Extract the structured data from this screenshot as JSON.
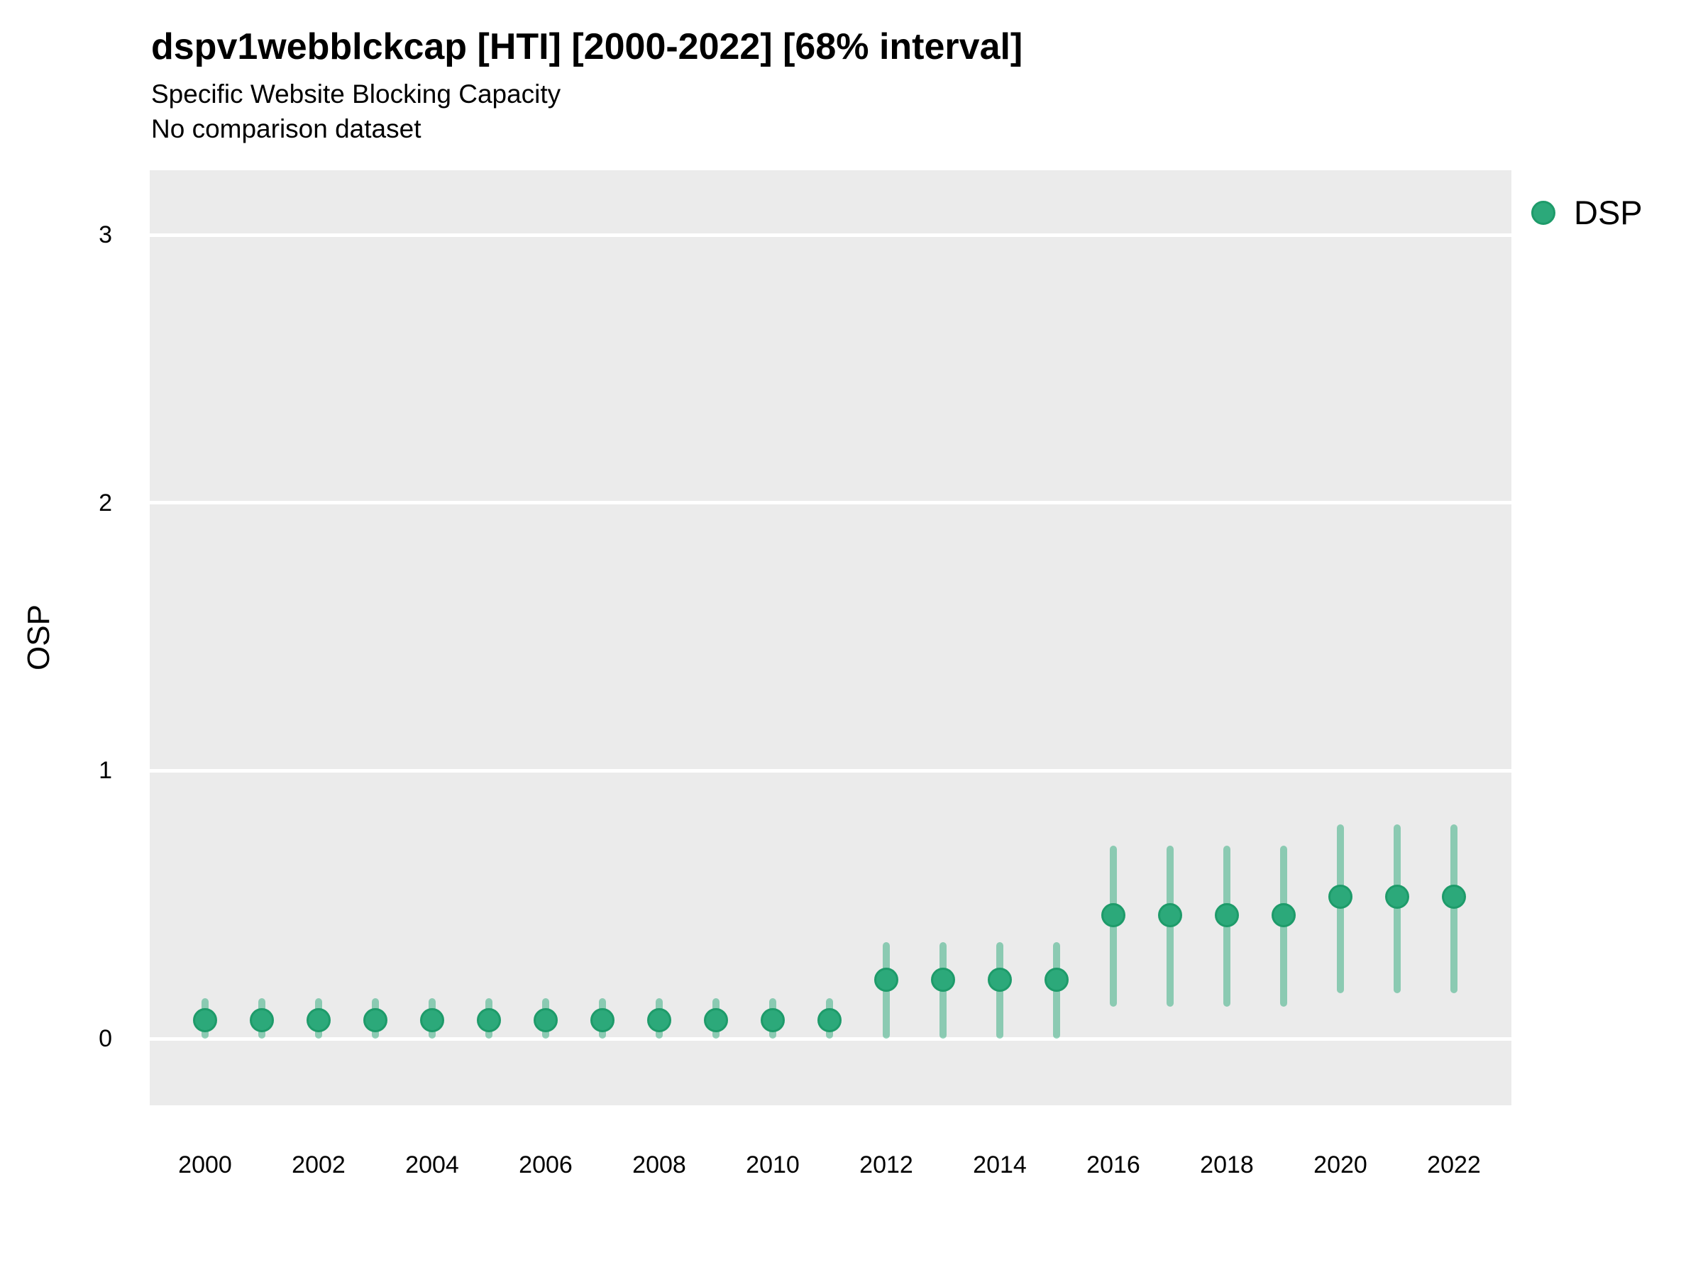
{
  "colors": {
    "point_fill": "#2ca97a",
    "point_stroke": "#1e9b6a",
    "interval_stroke": "rgba(44,169,122,0.5)",
    "panel_background": "#ebebeb",
    "gridline": "#ffffff",
    "text": "#000000"
  },
  "legend": {
    "position": "right-top",
    "marker": "circle-icon",
    "items": [
      {
        "label": "DSP"
      }
    ]
  },
  "chart_data": {
    "type": "scatter",
    "subtype": "pointrange",
    "title": "dspv1webblckcap [HTI] [2000-2022] [68% interval]",
    "subtitle": "Specific Website Blocking Capacity",
    "note": "No comparison dataset",
    "xlabel": "",
    "ylabel": "OSP",
    "x_ticks": [
      2000,
      2002,
      2004,
      2006,
      2008,
      2010,
      2012,
      2014,
      2016,
      2018,
      2020,
      2022
    ],
    "y_ticks": [
      0,
      1,
      2,
      3
    ],
    "xlim": [
      1999,
      2023
    ],
    "ylim": [
      -0.25,
      3.25
    ],
    "grid": "horizontal major gridlines only, white on grey panel, no vertical gridlines",
    "legend_position": "top-right outside panel",
    "interval_level": "68%",
    "series": [
      {
        "name": "DSP",
        "x": [
          2000,
          2001,
          2002,
          2003,
          2004,
          2005,
          2006,
          2007,
          2008,
          2009,
          2010,
          2011,
          2012,
          2013,
          2014,
          2015,
          2016,
          2017,
          2018,
          2019,
          2020,
          2021,
          2022
        ],
        "values": [
          0.07,
          0.07,
          0.07,
          0.07,
          0.07,
          0.07,
          0.07,
          0.07,
          0.07,
          0.07,
          0.07,
          0.07,
          0.22,
          0.22,
          0.22,
          0.22,
          0.46,
          0.46,
          0.46,
          0.46,
          0.53,
          0.53,
          0.53
        ],
        "lower": [
          0.0,
          0.0,
          0.0,
          0.0,
          0.0,
          0.0,
          0.0,
          0.0,
          0.0,
          0.0,
          0.0,
          0.0,
          0.0,
          0.0,
          0.0,
          0.0,
          0.12,
          0.12,
          0.12,
          0.12,
          0.17,
          0.17,
          0.17
        ],
        "upper": [
          0.15,
          0.15,
          0.15,
          0.15,
          0.15,
          0.15,
          0.15,
          0.15,
          0.15,
          0.15,
          0.15,
          0.15,
          0.36,
          0.36,
          0.36,
          0.36,
          0.72,
          0.72,
          0.72,
          0.72,
          0.8,
          0.8,
          0.8
        ]
      }
    ]
  }
}
